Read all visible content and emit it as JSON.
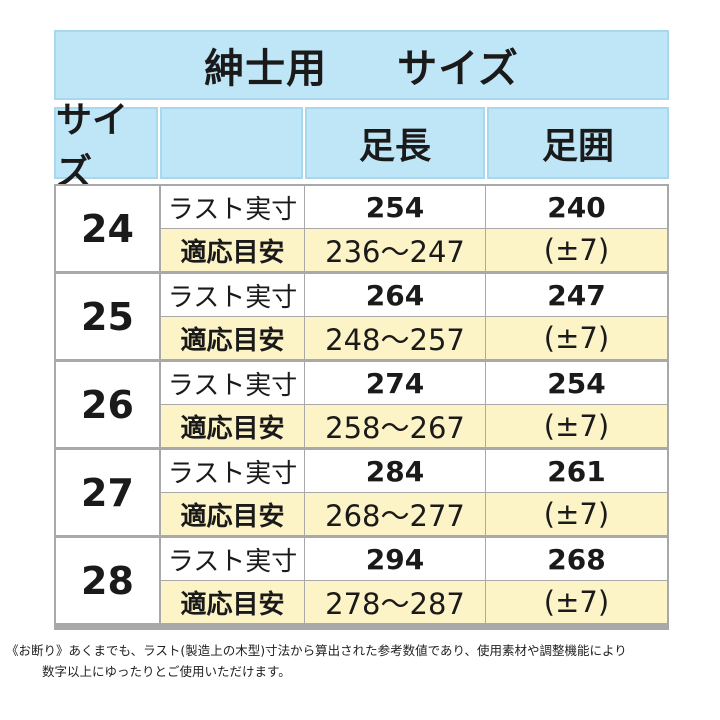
{
  "title": {
    "left": "紳士用",
    "right": "サイズ"
  },
  "headers": {
    "size": "サイズ",
    "blank": "",
    "length": "足長",
    "girth": "足囲"
  },
  "rows": [
    {
      "size": "24",
      "last_label": "ラスト実寸",
      "last_length": "254",
      "last_girth": "240",
      "fit_label": "適応目安",
      "fit_length": "236〜247",
      "fit_girth": "(±7)"
    },
    {
      "size": "25",
      "last_label": "ラスト実寸",
      "last_length": "264",
      "last_girth": "247",
      "fit_label": "適応目安",
      "fit_length": "248〜257",
      "fit_girth": "(±7)"
    },
    {
      "size": "26",
      "last_label": "ラスト実寸",
      "last_length": "274",
      "last_girth": "254",
      "fit_label": "適応目安",
      "fit_length": "258〜267",
      "fit_girth": "(±7)"
    },
    {
      "size": "27",
      "last_label": "ラスト実寸",
      "last_length": "284",
      "last_girth": "261",
      "fit_label": "適応目安",
      "fit_length": "268〜277",
      "fit_girth": "(±7)"
    },
    {
      "size": "28",
      "last_label": "ラスト実寸",
      "last_length": "294",
      "last_girth": "268",
      "fit_label": "適応目安",
      "fit_length": "278〜287",
      "fit_girth": "(±7)"
    }
  ],
  "note": {
    "line1": "《お断り》あくまでも、ラスト(製造上の木型)寸法から算出された参考数値であり、使用素材や調整機能により",
    "line2": "数字以上にゆったりとご使用いただけます。"
  },
  "colors": {
    "header_bg": "#bfe6f7",
    "fit_row_bg": "#fcf3c6",
    "grid_line": "#a9a9a9"
  }
}
